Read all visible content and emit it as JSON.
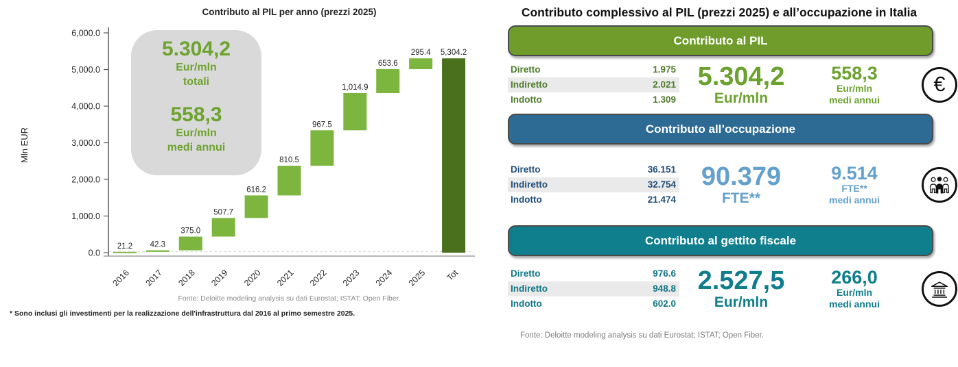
{
  "chart_data": {
    "type": "bar",
    "subtype": "waterfall",
    "title": "Contributo al PIL per anno (prezzi 2025)",
    "xlabel": "",
    "ylabel": "Mln EUR",
    "categories": [
      "2016",
      "2017",
      "2018",
      "2019",
      "2020",
      "2021",
      "2022",
      "2023",
      "2024",
      "2025",
      "Tot"
    ],
    "values": [
      21.2,
      42.3,
      375.0,
      507.7,
      616.2,
      810.5,
      967.5,
      1014.9,
      653.6,
      295.4,
      5304.2
    ],
    "labels": [
      "21.2",
      "42.3",
      "375.0",
      "507.7",
      "616.2",
      "810.5",
      "967.5",
      "1,014.9",
      "653.6",
      "295.4",
      "5,304.2"
    ],
    "total_index": 10,
    "ylim": [
      0,
      6000
    ],
    "ytick_step": 1000,
    "ytick_labels": [
      "0.0",
      "1,000.0",
      "2,000.0",
      "3,000.0",
      "4,000.0",
      "5,000.0",
      "6,000.0"
    ],
    "grid": "off",
    "legend": "none",
    "bar_color": "#7cb63e",
    "total_color": "#4b701d"
  },
  "left_chart": {
    "annotation": {
      "color": "#6da32e",
      "total_value": "5.304,2",
      "total_unit": "Eur/mln",
      "total_label": "totali",
      "annual_value": "558,3",
      "annual_unit": "Eur/mln",
      "annual_label": "medi annui"
    },
    "fonte": "Fonte: Deloitte modeling analysis su dati Eurostat; ISTAT; Open Fiber.",
    "footnote": "* Sono inclusi gli investimenti per la realizzazione dell'infrastruttura dal 2016 al primo semestre 2025."
  },
  "right_panel": {
    "title": "Contributo complessivo al PIL (prezzi 2025) e all’occupazione in Italia",
    "sections": [
      {
        "banner": "Contributo al PIL",
        "colors": {
          "banner": "#6f9c2a",
          "accent": "#4e7c2a",
          "big": "#6ba22e"
        },
        "rows": [
          {
            "label": "Diretto",
            "value": "1.975"
          },
          {
            "label": "Indiretto",
            "value": "2.021"
          },
          {
            "label": "Indotto",
            "value": "1.309"
          }
        ],
        "big_value": "5.304,2",
        "big_unit": "Eur/mln",
        "annual_value": "558,3",
        "annual_unit": "Eur/mln",
        "annual_label": "medi annui",
        "icon": "euro-icon"
      },
      {
        "banner": "Contributo all’occupazione",
        "colors": {
          "banner": "#2d6b94",
          "accent": "#1f4e79",
          "big": "#64a0cc"
        },
        "rows": [
          {
            "label": "Diretto",
            "value": "36.151"
          },
          {
            "label": "Indiretto",
            "value": "32.754"
          },
          {
            "label": "Indotto",
            "value": "21.474"
          }
        ],
        "big_value": "90.379",
        "big_unit": "FTE**",
        "annual_value": "9.514",
        "annual_unit": "FTE**",
        "annual_label": "medi annui",
        "icon": "workers-icon"
      },
      {
        "banner": "Contributo al gettito fiscale",
        "colors": {
          "banner": "#0f7f8d",
          "accent": "#0e7585",
          "big": "#0f7d8b"
        },
        "rows": [
          {
            "label": "Diretto",
            "value": "976.6"
          },
          {
            "label": "Indiretto",
            "value": "948.8"
          },
          {
            "label": "Indotto",
            "value": "602.0"
          }
        ],
        "big_value": "2.527,5",
        "big_unit": "Eur/mln",
        "annual_value": "266,0",
        "annual_unit": "Eur/mln",
        "annual_label": "medi annui",
        "icon": "bank-icon"
      }
    ],
    "fonte": "Fonte: Deloitte modeling analysis su dati Eurostat; ISTAT; Open Fiber."
  }
}
